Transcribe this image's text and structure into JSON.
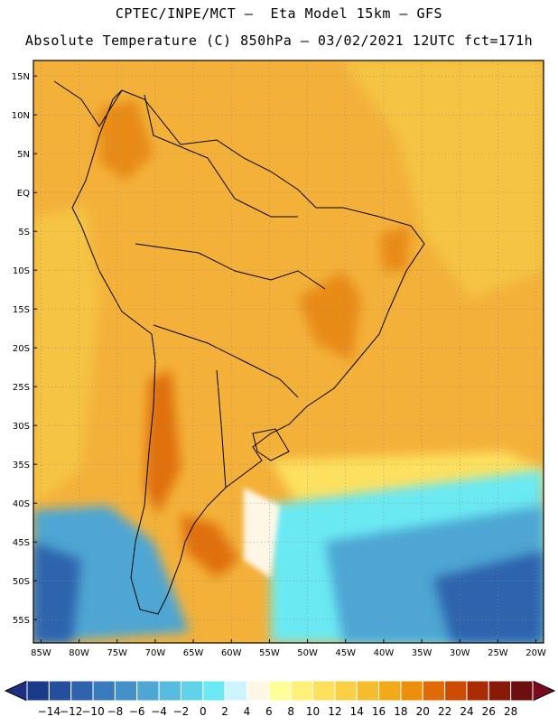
{
  "header": {
    "line1": "CPTEC/INPE/MCT –  Eta Model 15km – GFS",
    "line2": "Absolute Temperature (C) 850hPa – 03/02/2021 12UTC fct=171h"
  },
  "map": {
    "lon_range": [
      -86,
      -19
    ],
    "lat_range": [
      -58,
      17
    ],
    "lat_labels": [
      "15N",
      "10N",
      "5N",
      "EQ",
      "5S",
      "10S",
      "15S",
      "20S",
      "25S",
      "30S",
      "35S",
      "40S",
      "45S",
      "50S",
      "55S"
    ],
    "lat_values": [
      15,
      10,
      5,
      0,
      -5,
      -10,
      -15,
      -20,
      -25,
      -30,
      -35,
      -40,
      -45,
      -50,
      -55
    ],
    "lon_labels": [
      "85W",
      "80W",
      "75W",
      "70W",
      "65W",
      "60W",
      "55W",
      "50W",
      "45W",
      "40W",
      "35W",
      "30W",
      "25W",
      "20W"
    ],
    "lon_values": [
      -85,
      -80,
      -75,
      -70,
      -65,
      -60,
      -55,
      -50,
      -45,
      -40,
      -35,
      -30,
      -25,
      -20
    ]
  },
  "colorbar": {
    "labels": [
      "-14",
      "-12",
      "-10",
      "-8",
      "-6",
      "-4",
      "-2",
      "0",
      "2",
      "4",
      "6",
      "8",
      "10",
      "12",
      "14",
      "16",
      "18",
      "20",
      "22",
      "24",
      "26",
      "28"
    ],
    "colors": [
      "#1a3a8a",
      "#254e9c",
      "#2f64ad",
      "#3a7bbd",
      "#4590c8",
      "#4ea6d3",
      "#57bcdd",
      "#60d3e8",
      "#6be9f2",
      "#ccf5ff",
      "#fff7e6",
      "#ffff99",
      "#fff07a",
      "#fde05e",
      "#f8cf46",
      "#f5bd2e",
      "#f2aa18",
      "#ec900c",
      "#e06b06",
      "#cc4a04",
      "#aa2c05",
      "#8a1a08",
      "#6e0f0f"
    ],
    "under_color": "#1c2f80",
    "over_color": "#7a0a20"
  },
  "colors": {
    "background": "#f3b13a",
    "cold_deep": "#2f64ad",
    "cold_mid": "#4ea6d3",
    "cold_light": "#6be9f2",
    "pale": "#fff7e6",
    "warm_dark": "#e0700a"
  }
}
